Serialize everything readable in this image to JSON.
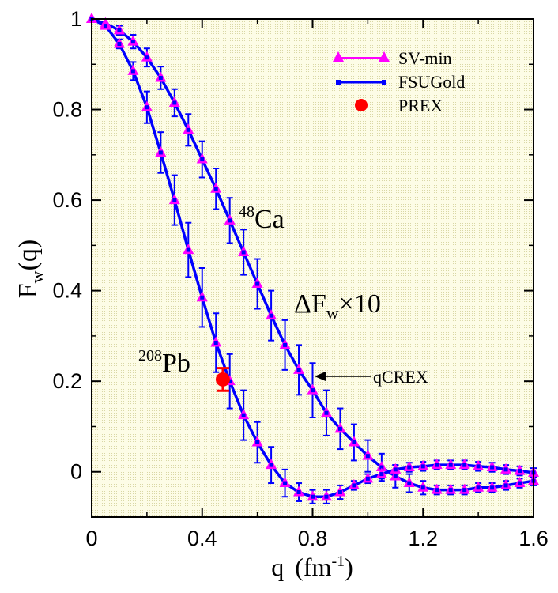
{
  "chart_data": {
    "type": "line",
    "xlabel_main": "q",
    "xlabel_unit_open": "(fm",
    "xlabel_unit_exp": "-1",
    "xlabel_unit_close": ")",
    "ylabel_main": "F",
    "ylabel_sub": "w",
    "ylabel_arg": "(q)",
    "xlim": [
      0,
      1.6
    ],
    "ylim": [
      -0.1,
      1.0
    ],
    "xticks": [
      "0",
      "0.4",
      "0.8",
      "1.2",
      "1.6"
    ],
    "xtick_values": [
      0,
      0.4,
      0.8,
      1.2,
      1.6
    ],
    "yticks": [
      "0",
      "0.2",
      "0.4",
      "0.6",
      "0.8",
      "1"
    ],
    "ytick_values": [
      0,
      0.2,
      0.4,
      0.6,
      0.8,
      1.0
    ],
    "background_color": "#fdfce6",
    "legend": [
      {
        "label": "SV-min",
        "color": "#ff00ff",
        "marker": "triangle"
      },
      {
        "label": "FSUGold",
        "color": "#0000ff",
        "marker": "square"
      },
      {
        "label": "PREX",
        "color": "#ff0000",
        "marker": "circle"
      }
    ],
    "annotations": {
      "ca_mass": "48",
      "ca_symbol": "Ca",
      "pb_mass": "208",
      "pb_symbol": "Pb",
      "delta_main": "ΔF",
      "delta_sub": "w",
      "delta_tail": "×10",
      "qcrex": "qCREX",
      "qcrex_x": 0.8
    },
    "x": [
      0.0,
      0.05,
      0.1,
      0.15,
      0.2,
      0.25,
      0.3,
      0.35,
      0.4,
      0.45,
      0.5,
      0.55,
      0.6,
      0.65,
      0.7,
      0.75,
      0.8,
      0.85,
      0.9,
      0.95,
      1.0,
      1.05,
      1.1,
      1.15,
      1.2,
      1.25,
      1.3,
      1.35,
      1.4,
      1.45,
      1.5,
      1.55,
      1.6
    ],
    "series": [
      {
        "name": "48Ca",
        "values": [
          1.0,
          0.99,
          0.975,
          0.95,
          0.915,
          0.87,
          0.815,
          0.755,
          0.69,
          0.625,
          0.555,
          0.485,
          0.415,
          0.345,
          0.28,
          0.225,
          0.18,
          0.13,
          0.095,
          0.065,
          0.035,
          0.01,
          -0.01,
          -0.025,
          -0.035,
          -0.04,
          -0.04,
          -0.04,
          -0.035,
          -0.035,
          -0.03,
          -0.025,
          -0.02
        ],
        "errors": [
          0,
          0,
          0.01,
          0.015,
          0.02,
          0.025,
          0.03,
          0.035,
          0.04,
          0.045,
          0.05,
          0.05,
          0.055,
          0.055,
          0.055,
          0.055,
          0.06,
          0.05,
          0.045,
          0.04,
          0.035,
          0.03,
          0.025,
          0.02,
          0.015,
          0.01,
          0.01,
          0.01,
          0.01,
          0.01,
          0.01,
          0.01,
          0.01
        ]
      },
      {
        "name": "208Pb",
        "values": [
          1.0,
          0.985,
          0.945,
          0.885,
          0.805,
          0.705,
          0.6,
          0.49,
          0.385,
          0.285,
          0.2,
          0.125,
          0.065,
          0.015,
          -0.025,
          -0.045,
          -0.055,
          -0.055,
          -0.045,
          -0.03,
          -0.015,
          -0.005,
          0.005,
          0.01,
          0.012,
          0.015,
          0.015,
          0.015,
          0.012,
          0.01,
          0.005,
          0.002,
          -0.002
        ],
        "errors": [
          0,
          0.005,
          0.01,
          0.02,
          0.035,
          0.045,
          0.055,
          0.06,
          0.065,
          0.065,
          0.06,
          0.055,
          0.045,
          0.04,
          0.03,
          0.02,
          0.015,
          0.015,
          0.015,
          0.01,
          0.01,
          0.01,
          0.01,
          0.01,
          0.01,
          0.01,
          0.01,
          0.01,
          0.01,
          0.01,
          0.01,
          0.01,
          0.01
        ]
      }
    ],
    "prex": {
      "x": 0.475,
      "y": 0.204,
      "err": 0.025
    }
  }
}
